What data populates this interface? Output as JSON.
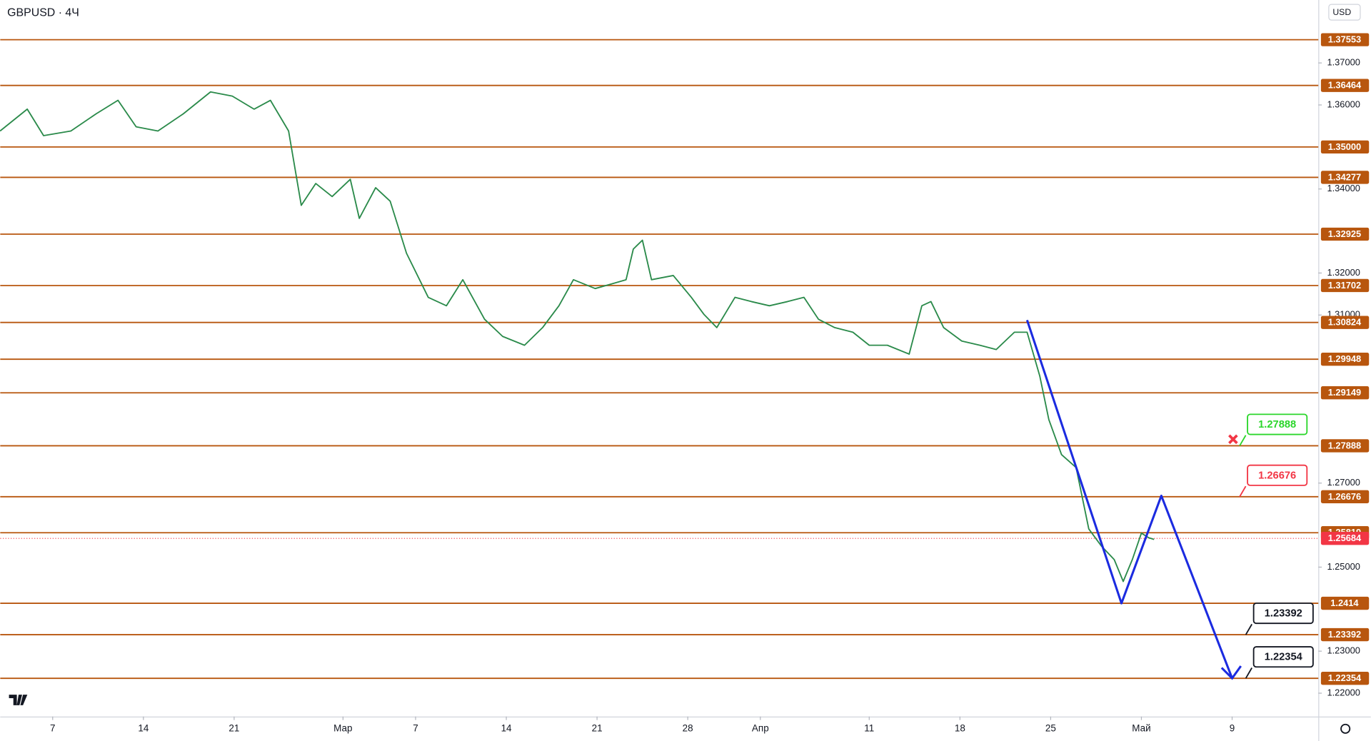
{
  "header": {
    "symbol": "GBPUSD · 4Ч",
    "currency": "USD"
  },
  "chart_data": {
    "type": "line",
    "x": [
      -2.9,
      -1.4,
      -0.5,
      1.0,
      2.4,
      3.6,
      4.6,
      5.8,
      7.2,
      8.7,
      9.9,
      11.1,
      12.0,
      13.0,
      13.7,
      14.5,
      15.4,
      16.4,
      16.9,
      17.8,
      18.6,
      19.5,
      20.7,
      21.7,
      22.6,
      23.8,
      24.8,
      26.0,
      27.0,
      27.9,
      28.7,
      29.9,
      30.8,
      31.6,
      32.0,
      32.5,
      33.0,
      34.2,
      35.2,
      35.9,
      36.6,
      37.6,
      38.5,
      39.5,
      40.5,
      41.4,
      42.2,
      43.1,
      44.1,
      45.0,
      46.0,
      47.2,
      47.9,
      48.4,
      49.1,
      50.1,
      51.1,
      52.0,
      53.0,
      53.7,
      54.4,
      54.9,
      55.6,
      56.4,
      57.1,
      57.8,
      58.5,
      59.0,
      59.5,
      60.0,
      60.4,
      60.7
    ],
    "values": [
      1.3538,
      1.359,
      1.3527,
      1.3538,
      1.3579,
      1.3611,
      1.3548,
      1.3538,
      1.3579,
      1.3631,
      1.3621,
      1.359,
      1.3611,
      1.3538,
      1.3361,
      1.3413,
      1.3382,
      1.3423,
      1.333,
      1.3403,
      1.3371,
      1.3247,
      1.3142,
      1.3122,
      1.3184,
      1.309,
      1.3049,
      1.3028,
      1.307,
      1.3122,
      1.3184,
      1.3163,
      1.3174,
      1.3184,
      1.3257,
      1.3278,
      1.3184,
      1.3194,
      1.3142,
      1.3101,
      1.307,
      1.3142,
      1.3132,
      1.3122,
      1.3132,
      1.3142,
      1.309,
      1.307,
      1.3059,
      1.3028,
      1.3028,
      1.3007,
      1.3122,
      1.3132,
      1.307,
      1.3038,
      1.3028,
      1.3018,
      1.3059,
      1.3059,
      1.2955,
      1.2851,
      1.2768,
      1.2737,
      1.2591,
      1.255,
      1.2518,
      1.2466,
      1.2518,
      1.2581,
      1.257,
      1.2566
    ],
    "color": "#2a8a4a",
    "xlim": [
      -2.89,
      69.75
    ],
    "xticks": [
      {
        "value": 0,
        "label": "7"
      },
      {
        "value": 5,
        "label": "14"
      },
      {
        "value": 10,
        "label": "21"
      },
      {
        "value": 16,
        "label": "Мар"
      },
      {
        "value": 20,
        "label": "7"
      },
      {
        "value": 25,
        "label": "14"
      },
      {
        "value": 30,
        "label": "21"
      },
      {
        "value": 35,
        "label": "28"
      },
      {
        "value": 39,
        "label": "Апр"
      },
      {
        "value": 45,
        "label": "11"
      },
      {
        "value": 50,
        "label": "18"
      },
      {
        "value": 55,
        "label": "25"
      },
      {
        "value": 60,
        "label": "Май"
      },
      {
        "value": 65,
        "label": "9"
      }
    ],
    "ylim": [
      1.21444,
      1.38498
    ],
    "yticks": [
      {
        "value": 1.37,
        "label": "1.37000"
      },
      {
        "value": 1.36,
        "label": "1.36000"
      },
      {
        "value": 1.34,
        "label": "1.34000"
      },
      {
        "value": 1.32,
        "label": "1.32000"
      },
      {
        "value": 1.31,
        "label": "1.31000"
      },
      {
        "value": 1.27,
        "label": "1.27000"
      },
      {
        "value": 1.25,
        "label": "1.25000"
      },
      {
        "value": 1.23,
        "label": "1.23000"
      },
      {
        "value": 1.22,
        "label": "1.22000"
      }
    ],
    "levels": [
      1.37553,
      1.36464,
      {
        "value": 1.35,
        "label": "1.35000"
      },
      1.34277,
      1.32925,
      1.31702,
      1.30824,
      1.29948,
      1.29149,
      1.27888,
      1.26676,
      1.25819,
      1.2414,
      1.23392,
      1.22354
    ],
    "level_color": "#b8560e",
    "last_price": 1.25684,
    "last_price_color": "#f23645",
    "projection": {
      "x": [
        53.7,
        58.9,
        61.1,
        65.0
      ],
      "values": [
        1.3088,
        1.2414,
        1.267,
        1.22354
      ],
      "color": "#1b2be0"
    },
    "annotations": [
      {
        "value": 1.27888,
        "color": "#2bd62b"
      },
      {
        "value": 1.26676,
        "color": "#f23645"
      },
      {
        "value": 1.23392,
        "color": "#131722"
      },
      {
        "value": 1.22354,
        "color": "#131722"
      }
    ]
  }
}
